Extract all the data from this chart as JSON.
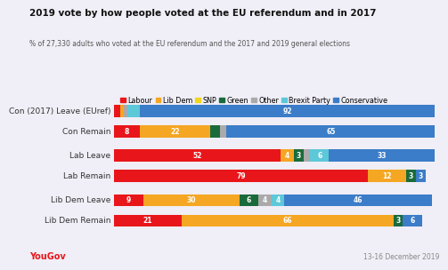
{
  "title": "2019 vote by how people voted at the EU referendum and in 2017",
  "subtitle": "% of 27,330 adults who voted at the EU referendum and the 2017 and 2019 general elections",
  "footer_left": "YouGov",
  "footer_right": "13-16 December 2019",
  "background_color": "#f0eef6",
  "categories": [
    "Con (2017) Leave (EUref)",
    "Con Remain",
    "Lab Leave",
    "Lab Remain",
    "Lib Dem Leave",
    "Lib Dem Remain"
  ],
  "party_colors": {
    "Labour": "#e8161b",
    "Lib Dem": "#f5a623",
    "SNP": "#f0d61e",
    "Green": "#1a6b3c",
    "Other": "#aaaaaa",
    "Brexit Party": "#5dc8d8",
    "Conservative": "#3b7dc8"
  },
  "legend_order": [
    "Labour",
    "Lib Dem",
    "SNP",
    "Green",
    "Other",
    "Brexit Party",
    "Conservative"
  ],
  "bars": {
    "Con (2017) Leave (EUref)": [
      2,
      1,
      0,
      0,
      1,
      4,
      92
    ],
    "Con Remain": [
      8,
      22,
      0,
      3,
      2,
      0,
      65
    ],
    "Lab Leave": [
      52,
      4,
      0,
      3,
      2,
      6,
      33
    ],
    "Lab Remain": [
      79,
      12,
      0,
      3,
      0,
      0,
      3
    ],
    "Lib Dem Leave": [
      9,
      30,
      0,
      6,
      4,
      4,
      46
    ],
    "Lib Dem Remain": [
      21,
      66,
      0,
      3,
      0,
      0,
      6
    ]
  },
  "labels_to_show": {
    "Con (2017) Leave (EUref)": {
      "Conservative": "92"
    },
    "Con Remain": {
      "Labour": "8",
      "Lib Dem": "22",
      "Conservative": "65"
    },
    "Lab Leave": {
      "Labour": "52",
      "Lib Dem": "4",
      "Green": "3",
      "Brexit Party": "6",
      "Conservative": "33"
    },
    "Lab Remain": {
      "Labour": "79",
      "Lib Dem": "12",
      "Green": "3",
      "Conservative": "3"
    },
    "Lib Dem Leave": {
      "Labour": "9",
      "Lib Dem": "30",
      "Green": "6",
      "Other": "4",
      "Brexit Party": "4",
      "Conservative": "46"
    },
    "Lib Dem Remain": {
      "Labour": "21",
      "Lib Dem": "66",
      "Green": "3",
      "Conservative": "6"
    }
  },
  "label_fontsize": 5.5,
  "title_fontsize": 7.5,
  "subtitle_fontsize": 5.5,
  "legend_fontsize": 5.8,
  "ylabel_fontsize": 6.5
}
